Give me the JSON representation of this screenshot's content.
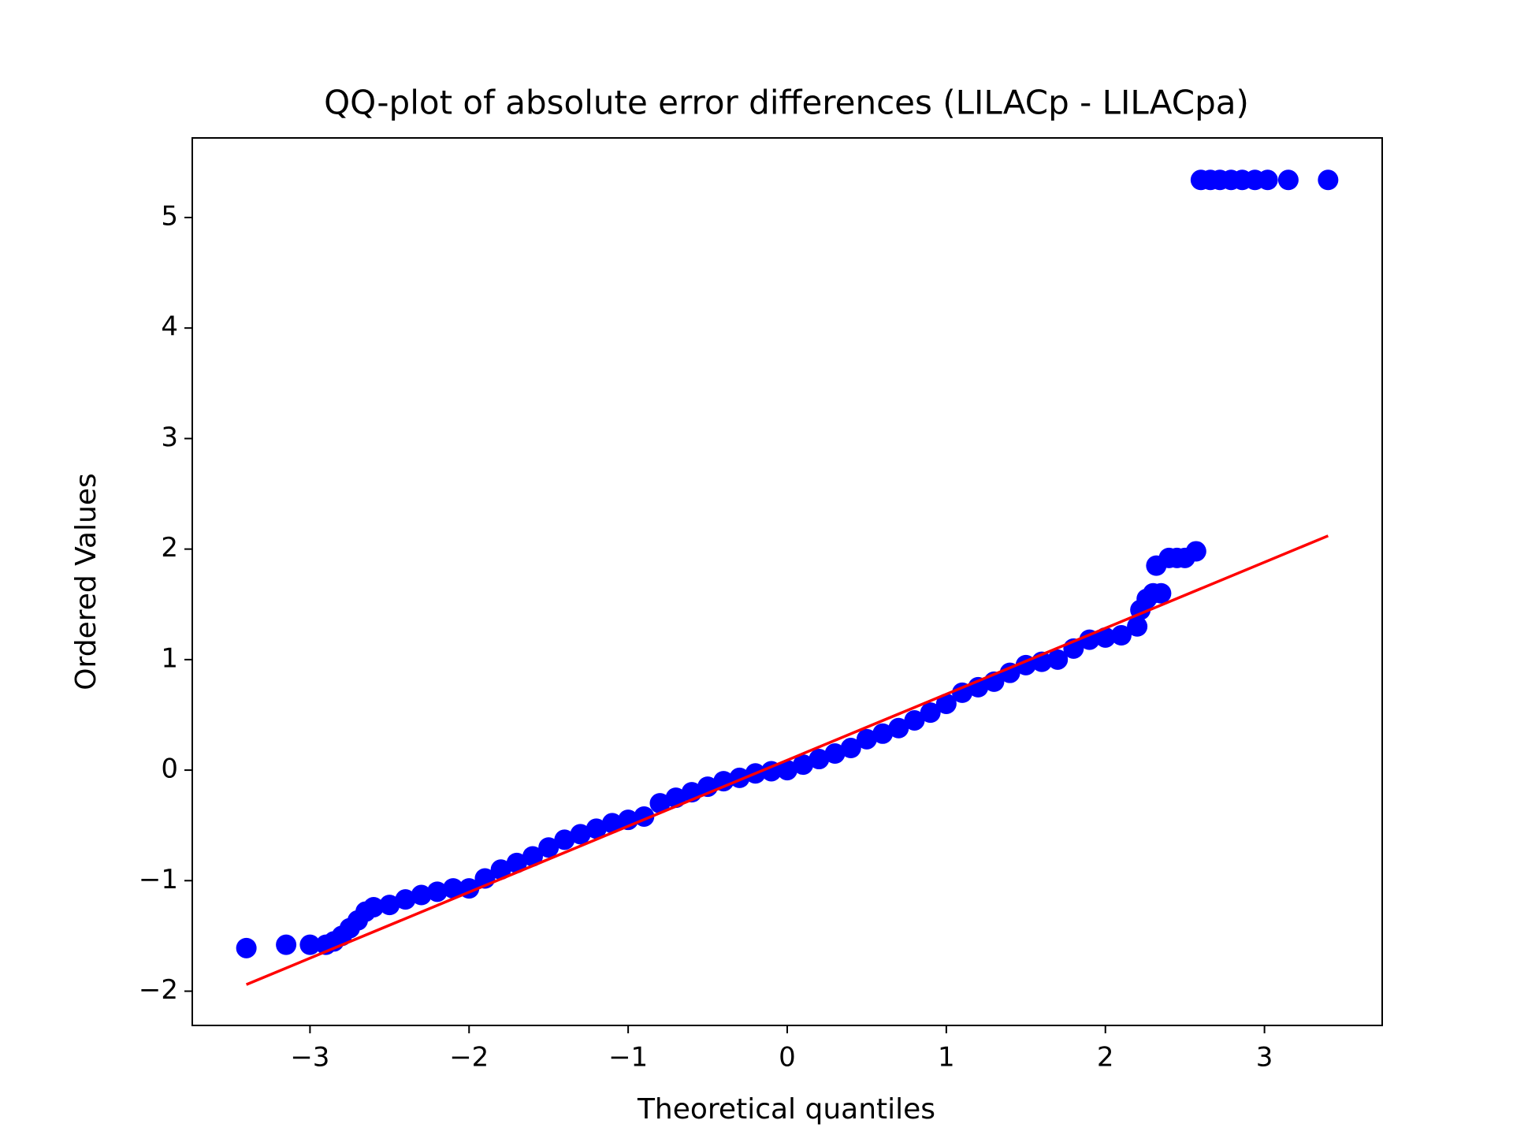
{
  "chart_data": {
    "type": "scatter",
    "title": "QQ-plot of absolute error differences (LILACp - LILACpa)",
    "x_label": "Theoretical quantiles",
    "y_label": "Ordered Values",
    "xlim": [
      -3.74,
      3.74
    ],
    "ylim": [
      -2.31,
      5.72
    ],
    "xticks": [
      {
        "value": -3,
        "label": "−3"
      },
      {
        "value": -2,
        "label": "−2"
      },
      {
        "value": -1,
        "label": "−1"
      },
      0,
      1,
      2,
      3
    ],
    "yticks": [
      {
        "value": -2,
        "label": "−2"
      },
      {
        "value": -1,
        "label": "−1"
      },
      0,
      1,
      2,
      3,
      4,
      5
    ],
    "points": {
      "color": "#0000ff",
      "x": [
        -3.4,
        -3.15,
        -3.0,
        -2.9,
        -2.85,
        -2.8,
        -2.75,
        -2.7,
        -2.65,
        -2.6,
        -2.5,
        -2.4,
        -2.3,
        -2.2,
        -2.1,
        -2.0,
        -1.9,
        -1.8,
        -1.7,
        -1.6,
        -1.5,
        -1.4,
        -1.3,
        -1.2,
        -1.1,
        -1.0,
        -0.9,
        -0.8,
        -0.7,
        -0.6,
        -0.5,
        -0.4,
        -0.3,
        -0.2,
        -0.1,
        0,
        0.1,
        0.2,
        0.3,
        0.4,
        0.5,
        0.6,
        0.7,
        0.8,
        0.9,
        1.0,
        1.1,
        1.2,
        1.3,
        1.4,
        1.5,
        1.6,
        1.7,
        1.8,
        1.9,
        2.0,
        2.1,
        2.2,
        2.22,
        2.26,
        2.3,
        2.35,
        2.32,
        2.4,
        2.45,
        2.5,
        2.57,
        2.6,
        2.66,
        2.72,
        2.79,
        2.86,
        2.94,
        3.02,
        3.15,
        3.4
      ],
      "y": [
        -1.61,
        -1.58,
        -1.58,
        -1.58,
        -1.55,
        -1.5,
        -1.43,
        -1.36,
        -1.28,
        -1.24,
        -1.22,
        -1.17,
        -1.13,
        -1.1,
        -1.07,
        -1.07,
        -0.98,
        -0.9,
        -0.84,
        -0.78,
        -0.7,
        -0.63,
        -0.58,
        -0.53,
        -0.48,
        -0.45,
        -0.42,
        -0.3,
        -0.25,
        -0.2,
        -0.15,
        -0.1,
        -0.07,
        -0.03,
        -0.01,
        0.0,
        0.05,
        0.1,
        0.15,
        0.2,
        0.28,
        0.33,
        0.38,
        0.45,
        0.52,
        0.6,
        0.7,
        0.75,
        0.8,
        0.88,
        0.95,
        0.98,
        1.0,
        1.1,
        1.18,
        1.2,
        1.22,
        1.3,
        1.45,
        1.55,
        1.6,
        1.6,
        1.85,
        1.92,
        1.92,
        1.92,
        1.98,
        5.34,
        5.34,
        5.34,
        5.34,
        5.34,
        5.34,
        5.34,
        5.34,
        5.34
      ]
    },
    "fit_line": {
      "color": "#ff0000",
      "x": [
        -3.4,
        3.4
      ],
      "y": [
        -1.94,
        2.12
      ]
    }
  }
}
